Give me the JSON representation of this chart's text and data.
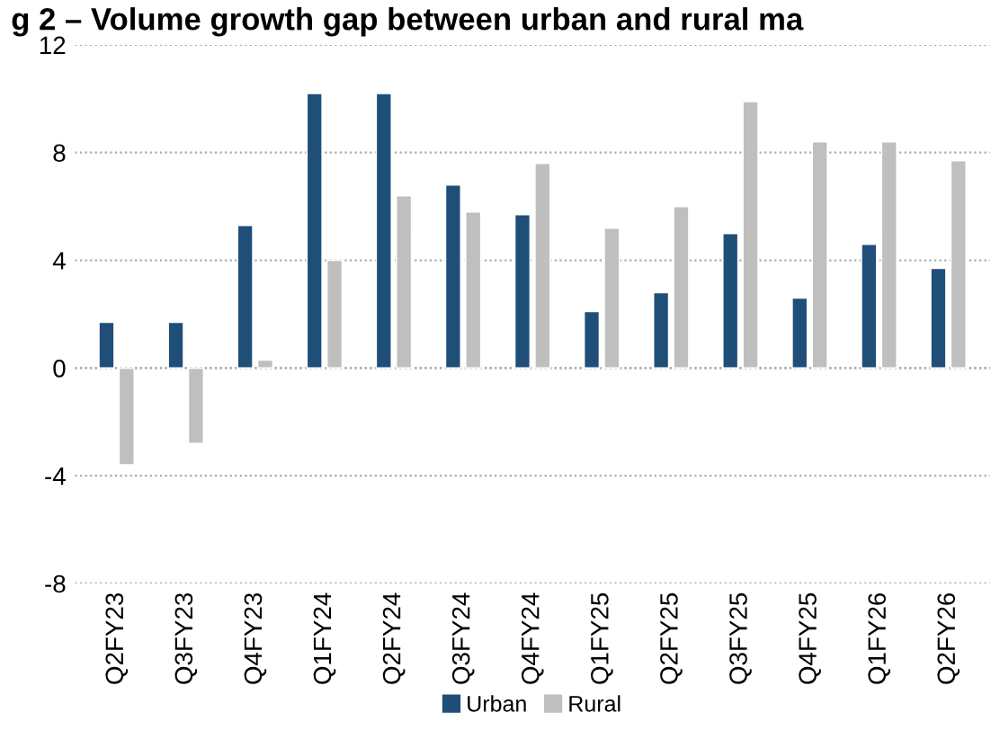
{
  "chart_data": {
    "type": "bar",
    "title": "g 2 – Volume growth gap between urban and rural ma",
    "categories": [
      "Q2FY23",
      "Q3FY23",
      "Q4FY23",
      "Q1FY24",
      "Q2FY24",
      "Q3FY24",
      "Q4FY24",
      "Q1FY25",
      "Q2FY25",
      "Q3FY25",
      "Q4FY25",
      "Q1FY26",
      "Q2FY26"
    ],
    "series": [
      {
        "name": "Urban",
        "color": "#1f4e79",
        "values": [
          1.7,
          1.7,
          5.3,
          10.2,
          10.2,
          6.8,
          5.7,
          2.1,
          2.8,
          5.0,
          2.6,
          4.6,
          3.7
        ]
      },
      {
        "name": "Rural",
        "color": "#bfbfbf",
        "values": [
          -3.6,
          -2.8,
          0.3,
          4.0,
          6.4,
          5.8,
          7.6,
          5.2,
          6.0,
          9.9,
          8.4,
          8.4,
          7.7
        ]
      }
    ],
    "ylim": [
      -8,
      12
    ],
    "yticks": [
      -8,
      -4,
      0,
      4,
      8,
      12
    ],
    "grid": "y",
    "legend": "bottom"
  }
}
